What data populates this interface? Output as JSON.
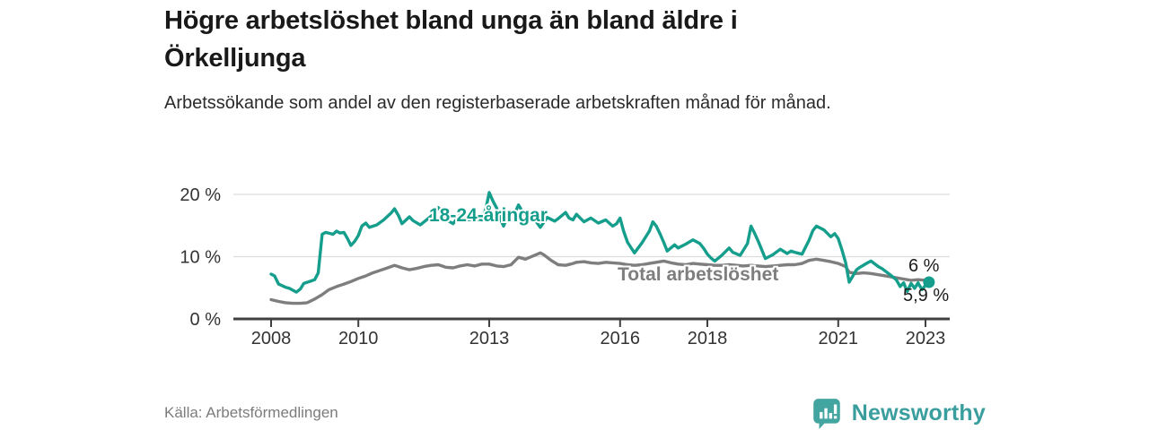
{
  "header": {
    "title": "Högre arbetslöshet bland unga än bland äldre i Örkelljunga",
    "subtitle": "Arbetssökande som andel av den registerbaserade arbetskraften månad för månad."
  },
  "footer": {
    "source": "Källa: Arbetsförmedlingen",
    "brand": "Newsworthy",
    "brand_icon": "bar-chart-speech-bubble-icon"
  },
  "colors": {
    "youth_line": "#169e8d",
    "total_line": "#7e7e7e",
    "grid": "#dcdcdc",
    "axis": "#404040",
    "axis_text": "#333333",
    "annotation_text": "#1c1c1c",
    "brand_teal": "#3a9e9e"
  },
  "chart_data": {
    "type": "line",
    "title": "Högre arbetslöshet bland unga än bland äldre i Örkelljunga",
    "subtitle": "Arbetssökande som andel av den registerbaserade arbetskraften månad för månad.",
    "xlabel": "",
    "ylabel": "",
    "xlim": [
      2006.85,
      2023.6
    ],
    "ylim": [
      0,
      21.5
    ],
    "grid": "horizontal",
    "legend_position": "inline-labels",
    "y_axis": {
      "ticks": [
        0,
        10,
        20
      ],
      "tick_labels": [
        "0 %",
        "10 %",
        "20 %"
      ]
    },
    "x_axis": {
      "ticks": [
        2008,
        2010,
        2013,
        2016,
        2018,
        2021,
        2023
      ],
      "tick_labels": [
        "2008",
        "2010",
        "2013",
        "2016",
        "2018",
        "2021",
        "2023"
      ]
    },
    "series": [
      {
        "name": "Total arbetslöshet",
        "color": "#7e7e7e",
        "end_label": "6 %",
        "end_dot": false,
        "points": [
          [
            2008.0,
            3.1
          ],
          [
            2008.17,
            2.8
          ],
          [
            2008.33,
            2.6
          ],
          [
            2008.5,
            2.5
          ],
          [
            2008.67,
            2.5
          ],
          [
            2008.83,
            2.6
          ],
          [
            2009.0,
            3.2
          ],
          [
            2009.17,
            3.9
          ],
          [
            2009.33,
            4.7
          ],
          [
            2009.5,
            5.2
          ],
          [
            2009.67,
            5.6
          ],
          [
            2009.83,
            6.0
          ],
          [
            2010.0,
            6.5
          ],
          [
            2010.17,
            6.9
          ],
          [
            2010.33,
            7.4
          ],
          [
            2010.5,
            7.8
          ],
          [
            2010.67,
            8.2
          ],
          [
            2010.83,
            8.6
          ],
          [
            2010.92,
            8.4
          ],
          [
            2011.0,
            8.2
          ],
          [
            2011.17,
            7.9
          ],
          [
            2011.33,
            8.1
          ],
          [
            2011.5,
            8.4
          ],
          [
            2011.67,
            8.6
          ],
          [
            2011.83,
            8.7
          ],
          [
            2011.92,
            8.5
          ],
          [
            2012.0,
            8.3
          ],
          [
            2012.17,
            8.2
          ],
          [
            2012.33,
            8.5
          ],
          [
            2012.5,
            8.7
          ],
          [
            2012.67,
            8.5
          ],
          [
            2012.83,
            8.8
          ],
          [
            2013.0,
            8.8
          ],
          [
            2013.17,
            8.5
          ],
          [
            2013.33,
            8.4
          ],
          [
            2013.5,
            8.7
          ],
          [
            2013.67,
            9.9
          ],
          [
            2013.83,
            9.6
          ],
          [
            2014.0,
            10.1
          ],
          [
            2014.17,
            10.6
          ],
          [
            2014.25,
            10.3
          ],
          [
            2014.42,
            9.4
          ],
          [
            2014.58,
            8.7
          ],
          [
            2014.75,
            8.6
          ],
          [
            2014.92,
            8.9
          ],
          [
            2015.0,
            9.1
          ],
          [
            2015.17,
            9.2
          ],
          [
            2015.33,
            9.0
          ],
          [
            2015.5,
            8.9
          ],
          [
            2015.67,
            9.1
          ],
          [
            2015.83,
            9.0
          ],
          [
            2016.0,
            8.9
          ],
          [
            2016.17,
            8.7
          ],
          [
            2016.33,
            8.6
          ],
          [
            2016.5,
            8.7
          ],
          [
            2016.67,
            8.9
          ],
          [
            2016.83,
            9.1
          ],
          [
            2017.0,
            9.3
          ],
          [
            2017.17,
            9.0
          ],
          [
            2017.33,
            8.8
          ],
          [
            2017.5,
            8.7
          ],
          [
            2017.67,
            8.9
          ],
          [
            2017.83,
            8.8
          ],
          [
            2018.0,
            8.7
          ],
          [
            2018.17,
            8.6
          ],
          [
            2018.33,
            8.6
          ],
          [
            2018.5,
            8.7
          ],
          [
            2018.67,
            8.6
          ],
          [
            2018.83,
            8.5
          ],
          [
            2019.0,
            8.6
          ],
          [
            2019.17,
            8.5
          ],
          [
            2019.33,
            8.4
          ],
          [
            2019.5,
            8.5
          ],
          [
            2019.67,
            8.6
          ],
          [
            2019.83,
            8.7
          ],
          [
            2020.0,
            8.7
          ],
          [
            2020.17,
            8.9
          ],
          [
            2020.33,
            9.4
          ],
          [
            2020.5,
            9.6
          ],
          [
            2020.67,
            9.4
          ],
          [
            2020.83,
            9.2
          ],
          [
            2021.0,
            8.9
          ],
          [
            2021.17,
            8.4
          ],
          [
            2021.25,
            7.5
          ],
          [
            2021.42,
            7.3
          ],
          [
            2021.58,
            7.4
          ],
          [
            2021.75,
            7.3
          ],
          [
            2021.92,
            7.1
          ],
          [
            2022.0,
            7.0
          ],
          [
            2022.17,
            6.8
          ],
          [
            2022.33,
            6.6
          ],
          [
            2022.5,
            6.4
          ],
          [
            2022.67,
            6.2
          ],
          [
            2022.83,
            6.3
          ],
          [
            2023.0,
            6.2
          ],
          [
            2023.08,
            6.0
          ]
        ]
      },
      {
        "name": "18-24-åringar",
        "color": "#169e8d",
        "end_label": "5,9 %",
        "end_dot": true,
        "points": [
          [
            2008.0,
            7.2
          ],
          [
            2008.08,
            6.9
          ],
          [
            2008.17,
            5.6
          ],
          [
            2008.33,
            5.1
          ],
          [
            2008.42,
            4.9
          ],
          [
            2008.58,
            4.3
          ],
          [
            2008.67,
            4.8
          ],
          [
            2008.75,
            5.7
          ],
          [
            2008.92,
            6.1
          ],
          [
            2009.0,
            6.3
          ],
          [
            2009.08,
            7.4
          ],
          [
            2009.17,
            13.6
          ],
          [
            2009.25,
            13.9
          ],
          [
            2009.42,
            13.6
          ],
          [
            2009.5,
            14.1
          ],
          [
            2009.58,
            13.8
          ],
          [
            2009.67,
            13.9
          ],
          [
            2009.75,
            12.9
          ],
          [
            2009.83,
            11.8
          ],
          [
            2009.92,
            12.5
          ],
          [
            2010.0,
            13.4
          ],
          [
            2010.08,
            14.9
          ],
          [
            2010.17,
            15.4
          ],
          [
            2010.25,
            14.7
          ],
          [
            2010.42,
            15.1
          ],
          [
            2010.58,
            15.9
          ],
          [
            2010.75,
            17.0
          ],
          [
            2010.83,
            17.7
          ],
          [
            2010.92,
            16.6
          ],
          [
            2011.0,
            15.3
          ],
          [
            2011.17,
            16.4
          ],
          [
            2011.25,
            15.8
          ],
          [
            2011.42,
            15.1
          ],
          [
            2011.58,
            16.0
          ],
          [
            2011.75,
            17.0
          ],
          [
            2011.83,
            17.9
          ],
          [
            2011.92,
            17.2
          ],
          [
            2012.0,
            16.0
          ],
          [
            2012.17,
            15.3
          ],
          [
            2012.33,
            16.7
          ],
          [
            2012.5,
            15.9
          ],
          [
            2012.67,
            16.1
          ],
          [
            2012.83,
            15.9
          ],
          [
            2012.92,
            17.6
          ],
          [
            2013.0,
            20.3
          ],
          [
            2013.08,
            19.0
          ],
          [
            2013.17,
            17.8
          ],
          [
            2013.25,
            16.2
          ],
          [
            2013.33,
            14.9
          ],
          [
            2013.42,
            16.4
          ],
          [
            2013.5,
            17.2
          ],
          [
            2013.58,
            16.9
          ],
          [
            2013.67,
            18.3
          ],
          [
            2013.75,
            17.4
          ],
          [
            2013.83,
            16.7
          ],
          [
            2013.92,
            16.2
          ],
          [
            2014.0,
            16.6
          ],
          [
            2014.08,
            15.6
          ],
          [
            2014.17,
            14.7
          ],
          [
            2014.33,
            16.3
          ],
          [
            2014.5,
            15.7
          ],
          [
            2014.58,
            16.1
          ],
          [
            2014.75,
            17.1
          ],
          [
            2014.83,
            16.2
          ],
          [
            2014.92,
            15.9
          ],
          [
            2015.0,
            16.8
          ],
          [
            2015.17,
            15.6
          ],
          [
            2015.33,
            16.2
          ],
          [
            2015.5,
            15.4
          ],
          [
            2015.67,
            15.9
          ],
          [
            2015.83,
            14.9
          ],
          [
            2015.92,
            15.3
          ],
          [
            2016.0,
            16.2
          ],
          [
            2016.08,
            14.1
          ],
          [
            2016.17,
            12.3
          ],
          [
            2016.33,
            10.6
          ],
          [
            2016.5,
            12.2
          ],
          [
            2016.67,
            14.1
          ],
          [
            2016.75,
            15.6
          ],
          [
            2016.83,
            14.9
          ],
          [
            2016.92,
            13.6
          ],
          [
            2017.0,
            12.3
          ],
          [
            2017.08,
            10.9
          ],
          [
            2017.25,
            11.9
          ],
          [
            2017.33,
            11.4
          ],
          [
            2017.5,
            12.0
          ],
          [
            2017.67,
            12.7
          ],
          [
            2017.83,
            12.1
          ],
          [
            2017.92,
            11.3
          ],
          [
            2018.0,
            10.4
          ],
          [
            2018.08,
            9.8
          ],
          [
            2018.17,
            9.3
          ],
          [
            2018.33,
            10.2
          ],
          [
            2018.5,
            11.4
          ],
          [
            2018.58,
            10.7
          ],
          [
            2018.75,
            10.2
          ],
          [
            2018.92,
            12.1
          ],
          [
            2019.0,
            14.9
          ],
          [
            2019.08,
            13.8
          ],
          [
            2019.17,
            12.4
          ],
          [
            2019.33,
            9.7
          ],
          [
            2019.5,
            10.3
          ],
          [
            2019.67,
            11.2
          ],
          [
            2019.83,
            10.5
          ],
          [
            2019.92,
            10.9
          ],
          [
            2020.0,
            10.7
          ],
          [
            2020.17,
            10.4
          ],
          [
            2020.33,
            12.6
          ],
          [
            2020.42,
            14.2
          ],
          [
            2020.5,
            14.9
          ],
          [
            2020.67,
            14.3
          ],
          [
            2020.83,
            13.2
          ],
          [
            2020.92,
            13.7
          ],
          [
            2021.0,
            12.9
          ],
          [
            2021.08,
            11.2
          ],
          [
            2021.17,
            9.0
          ],
          [
            2021.25,
            5.9
          ],
          [
            2021.42,
            7.9
          ],
          [
            2021.5,
            8.3
          ],
          [
            2021.67,
            9.0
          ],
          [
            2021.75,
            9.3
          ],
          [
            2021.92,
            8.4
          ],
          [
            2022.0,
            8.1
          ],
          [
            2022.17,
            7.2
          ],
          [
            2022.33,
            6.3
          ],
          [
            2022.42,
            5.2
          ],
          [
            2022.5,
            5.8
          ],
          [
            2022.58,
            4.4
          ],
          [
            2022.67,
            5.7
          ],
          [
            2022.75,
            4.9
          ],
          [
            2022.83,
            5.8
          ],
          [
            2022.92,
            4.7
          ],
          [
            2023.0,
            5.4
          ],
          [
            2023.08,
            5.9
          ]
        ]
      }
    ]
  }
}
